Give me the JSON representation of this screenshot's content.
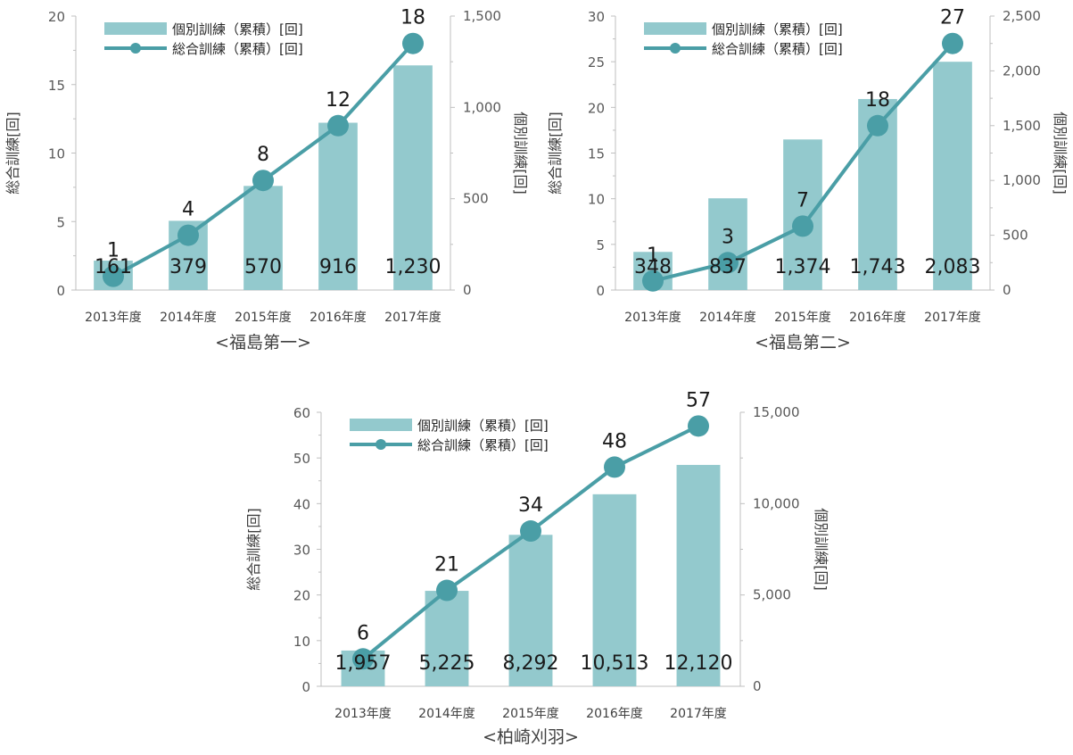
{
  "colors": {
    "bar": "#93c9cd",
    "line": "#4a9ea6",
    "axis": "#bfbfbf"
  },
  "chart_data": [
    {
      "type": "bar+line",
      "title": "<福島第一>",
      "categories": [
        "2013年度",
        "2014年度",
        "2015年度",
        "2016年度",
        "2017年度"
      ],
      "series": [
        {
          "name": "個別訓練（累積）[回]",
          "type": "bar",
          "axis": "right",
          "values": [
            161,
            379,
            570,
            916,
            1230
          ],
          "labels": [
            "161",
            "379",
            "570",
            "916",
            "1,230"
          ]
        },
        {
          "name": "総合訓練（累積）[回]",
          "type": "line",
          "axis": "left",
          "values": [
            1,
            4,
            8,
            12,
            18
          ],
          "labels": [
            "1",
            "4",
            "8",
            "12",
            "18"
          ]
        }
      ],
      "ylabel_left": "総合訓練[回]",
      "ylabel_right": "個別訓練[回]",
      "ylim_left": [
        0,
        20
      ],
      "yticks_left": [
        "0",
        "5",
        "10",
        "15",
        "20"
      ],
      "ylim_right": [
        0,
        1500
      ],
      "yticks_right": [
        "0",
        "500",
        "1,000",
        "1,500"
      ],
      "legend": "top-left"
    },
    {
      "type": "bar+line",
      "title": "<福島第二>",
      "categories": [
        "2013年度",
        "2014年度",
        "2015年度",
        "2016年度",
        "2017年度"
      ],
      "series": [
        {
          "name": "個別訓練（累積）[回]",
          "type": "bar",
          "axis": "right",
          "values": [
            348,
            837,
            1374,
            1743,
            2083
          ],
          "labels": [
            "348",
            "837",
            "1,374",
            "1,743",
            "2,083"
          ]
        },
        {
          "name": "総合訓練（累積）[回]",
          "type": "line",
          "axis": "left",
          "values": [
            1,
            3,
            7,
            18,
            27
          ],
          "labels": [
            "1",
            "3",
            "7",
            "18",
            "27"
          ]
        }
      ],
      "ylabel_left": "総合訓練[回]",
      "ylabel_right": "個別訓練[回]",
      "ylim_left": [
        0,
        30
      ],
      "yticks_left": [
        "0",
        "5",
        "10",
        "15",
        "20",
        "25",
        "30"
      ],
      "ylim_right": [
        0,
        2500
      ],
      "yticks_right": [
        "0",
        "500",
        "1,000",
        "1,500",
        "2,000",
        "2,500"
      ],
      "legend": "top-left"
    },
    {
      "type": "bar+line",
      "title": "<柏崎刈羽>",
      "categories": [
        "2013年度",
        "2014年度",
        "2015年度",
        "2016年度",
        "2017年度"
      ],
      "series": [
        {
          "name": "個別訓練（累積）[回]",
          "type": "bar",
          "axis": "right",
          "values": [
            1957,
            5225,
            8292,
            10513,
            12120
          ],
          "labels": [
            "1,957",
            "5,225",
            "8,292",
            "10,513",
            "12,120"
          ]
        },
        {
          "name": "総合訓練（累積）[回]",
          "type": "line",
          "axis": "left",
          "values": [
            6,
            21,
            34,
            48,
            57
          ],
          "labels": [
            "6",
            "21",
            "34",
            "48",
            "57"
          ]
        }
      ],
      "ylabel_left": "総合訓練[回]",
      "ylabel_right": "個別訓練[回]",
      "ylim_left": [
        0,
        60
      ],
      "yticks_left": [
        "0",
        "10",
        "20",
        "30",
        "40",
        "50",
        "60"
      ],
      "ylim_right": [
        0,
        15000
      ],
      "yticks_right": [
        "0",
        "5,000",
        "10,000",
        "15,000"
      ],
      "legend": "top-left"
    }
  ]
}
